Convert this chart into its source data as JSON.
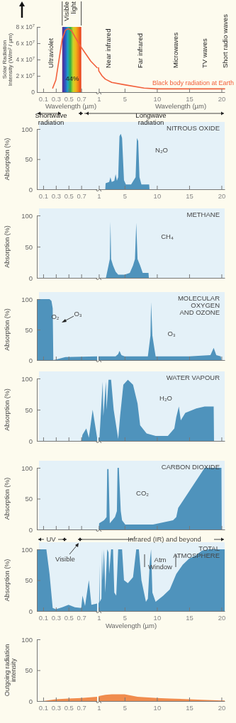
{
  "chart_data": [
    {
      "type": "line",
      "ylabel": "Solar Radiation Intensity (W/m² / µm)",
      "xlabel": "Wavelength (µm)",
      "xlim": [
        0,
        0.95
      ],
      "xticks": [
        0.1,
        0.3,
        0.5,
        0.7
      ],
      "ylim": [
        0,
        80000000
      ],
      "yticks": [
        0,
        {
          "value": 20000000,
          "label": "2 x 10$^{7}$"
        },
        {
          "value": 40000000,
          "label": "4 x 10$^{7}$"
        },
        {
          "value": 60000000,
          "label": "6 x 10$^{7}$"
        },
        {
          "value": 80000000,
          "label": "8 x 10$^{7}$"
        }
      ],
      "x": [
        0.25,
        0.3,
        0.35,
        0.4,
        0.45,
        0.5,
        0.55,
        0.6,
        0.7,
        0.85,
        0.95
      ],
      "series": [
        {
          "color": "#f2603c",
          "values": [
            5000000,
            15000000,
            40000000,
            65000000,
            76000000,
            78000000,
            75000000,
            68000000,
            55000000,
            38000000,
            30000000
          ]
        }
      ],
      "bands": [
        {
          "axis": "x",
          "from": 0.4,
          "to": 0.7,
          "label": "Visible light"
        }
      ],
      "annotations": [
        "Ultraviolet",
        "44%",
        "Shortwave radiation"
      ]
    },
    {
      "type": "line",
      "xlabel": "Wavelength (µm)",
      "xlim": [
        0.95,
        20.5
      ],
      "xticks": [
        1,
        5,
        10,
        15,
        20
      ],
      "ylim": [
        0,
        80000000
      ],
      "tick_labels": "x",
      "x": [
        0.95,
        1,
        1.5,
        2,
        3,
        5,
        8,
        10,
        15,
        20,
        20.5
      ],
      "series": [
        {
          "name": "Black body radiation at Earth",
          "color": "#f2603c",
          "values": [
            30000000,
            26000000,
            20000000,
            16000000,
            12000000,
            9000000,
            5000000,
            4000000,
            4000000,
            4000000,
            4000000
          ]
        }
      ],
      "annotations": [
        "Near infrared",
        "Far infrared",
        "Microwaves",
        "TV waves",
        "Short radio waves",
        "Longwave radiation"
      ]
    },
    {
      "type": "area",
      "ylabel": "Absorption (%)",
      "xlim": [
        0,
        0.95
      ],
      "xticks": [
        0.1,
        0.3,
        0.5,
        0.7
      ],
      "ylim": [
        0,
        100
      ],
      "yticks": [
        0,
        50,
        100
      ]
    },
    {
      "type": "area",
      "title": "NITROUS OXIDE",
      "xlim": [
        0.95,
        20.5
      ],
      "xticks": [
        1,
        5,
        10,
        15,
        20
      ],
      "ylim": [
        0,
        100
      ],
      "tick_labels": "x",
      "color": "#4f93bc",
      "x": [
        2.0,
        2.05,
        2.6,
        2.8,
        3.0,
        3.4,
        3.6,
        3.8,
        4.0,
        4.2,
        4.4,
        4.6,
        4.9,
        5.2,
        6.0,
        6.7,
        6.9,
        7.1,
        7.3,
        7.6,
        8.8,
        8.85
      ],
      "values": [
        0,
        10,
        12,
        20,
        12,
        14,
        25,
        14,
        20,
        88,
        92,
        85,
        15,
        8,
        8,
        20,
        85,
        80,
        20,
        8,
        8,
        0
      ],
      "annotations": [
        "N₂O"
      ]
    },
    {
      "type": "area",
      "ylabel": "Absorption (%)",
      "xlim": [
        0,
        0.95
      ],
      "xticks": [
        0.1,
        0.3,
        0.5,
        0.7
      ],
      "ylim": [
        0,
        100
      ],
      "yticks": [
        0,
        50,
        100
      ],
      "tick_labels": "y"
    },
    {
      "type": "area",
      "title": "METHANE",
      "xlim": [
        0.95,
        20.5
      ],
      "xticks": [
        1,
        5,
        10,
        15,
        20
      ],
      "ylim": [
        0,
        100
      ],
      "tick_labels": false,
      "color": "#4f93bc",
      "x": [
        2.1,
        2.2,
        2.5,
        2.7,
        2.8,
        2.9,
        3.2,
        3.6,
        4.0,
        4.9,
        5.0,
        5.8,
        6.3,
        6.6,
        6.8,
        7.0,
        7.4,
        7.8,
        8.7,
        8.75
      ],
      "values": [
        0,
        5,
        20,
        30,
        90,
        30,
        20,
        10,
        5,
        5,
        5,
        8,
        20,
        30,
        88,
        30,
        20,
        8,
        8,
        0
      ],
      "annotations": [
        "CH₄"
      ]
    },
    {
      "type": "area",
      "ylabel": "Absorption (%)",
      "xlim": [
        0,
        0.95
      ],
      "xticks": [
        0.1,
        0.3,
        0.5,
        0.7
      ],
      "ylim": [
        0,
        100
      ],
      "yticks": [
        0,
        50,
        100
      ],
      "tick_labels": "y",
      "color": "#4f93bc",
      "x": [
        0,
        0.2,
        0.23,
        0.25,
        0.26,
        0.3,
        0.45,
        0.95
      ],
      "values": [
        100,
        100,
        97,
        85,
        0,
        1,
        5,
        6
      ],
      "annotations": [
        "O₂",
        "O₃"
      ]
    },
    {
      "type": "area",
      "title": "MOLECULAR OXYGEN AND OZONE",
      "xlim": [
        0.95,
        20.5
      ],
      "xticks": [
        1,
        5,
        10,
        15,
        20
      ],
      "ylim": [
        0,
        100
      ],
      "tick_labels": false,
      "color": "#4f93bc",
      "x": [
        0.95,
        3.6,
        4.0,
        4.2,
        4.5,
        5,
        8.6,
        9.0,
        9.1,
        9.3,
        9.8,
        15,
        18.3,
        18.8,
        19.2,
        19.9,
        20
      ],
      "values": [
        6,
        6,
        10,
        15,
        8,
        6,
        6,
        40,
        95,
        40,
        6,
        6,
        8,
        20,
        8,
        6,
        0
      ],
      "annotations": [
        "O₃"
      ]
    },
    {
      "type": "area",
      "ylabel": "Absorption (%)",
      "xlim": [
        0,
        0.95
      ],
      "xticks": [
        0.1,
        0.3,
        0.5,
        0.7
      ],
      "ylim": [
        0,
        100
      ],
      "yticks": [
        0,
        50,
        100
      ],
      "tick_labels": "y",
      "color": "#4f93bc",
      "x": [
        0.7,
        0.72,
        0.78,
        0.82,
        0.88,
        0.95
      ],
      "values": [
        0,
        10,
        20,
        5,
        50,
        5
      ]
    },
    {
      "type": "area",
      "title": "WATER VAPOUR",
      "xlim": [
        0.95,
        20.5
      ],
      "xticks": [
        1,
        5,
        10,
        15,
        20
      ],
      "ylim": [
        0,
        100
      ],
      "tick_labels": false,
      "color": "#4f93bc",
      "x": [
        0.95,
        1.1,
        1.6,
        1.7,
        2.1,
        2.2,
        2.5,
        2.9,
        3.3,
        4.0,
        4.3,
        4.8,
        5.5,
        6.3,
        7.0,
        7.4,
        8.4,
        9.8,
        11.7,
        12.7,
        13.0,
        13.4,
        13.7,
        14.4,
        16.1,
        17.4,
        18.8,
        18.85
      ],
      "values": [
        5,
        5,
        95,
        40,
        95,
        50,
        98,
        98,
        50,
        3,
        40,
        90,
        98,
        90,
        60,
        25,
        12,
        8,
        8,
        20,
        38,
        55,
        33,
        45,
        52,
        55,
        55,
        0
      ],
      "annotations": [
        "H₂O"
      ]
    },
    {
      "type": "area",
      "ylabel": "Absorption (%)",
      "xlim": [
        0,
        0.95
      ],
      "xticks": [
        0.1,
        0.3,
        0.5,
        0.7
      ],
      "ylim": [
        0,
        100
      ],
      "yticks": [
        0,
        50,
        100
      ],
      "tick_labels": "y"
    },
    {
      "type": "area",
      "title": "CARBON DIOXIDE",
      "xlim": [
        0.95,
        20.5
      ],
      "xticks": [
        1,
        5,
        10,
        15,
        20
      ],
      "ylim": [
        0,
        100
      ],
      "tick_labels": false,
      "color": "#4f93bc",
      "x": [
        1.0,
        1.05,
        1.8,
        2.2,
        2.3,
        2.5,
        2.7,
        3.5,
        3.8,
        3.9,
        4.1,
        4.4,
        4.6,
        5.1,
        9.4,
        12.5,
        13.0,
        13.3,
        17.4,
        20,
        20.05
      ],
      "values": [
        0,
        10,
        15,
        20,
        98,
        98,
        10,
        20,
        30,
        100,
        100,
        30,
        15,
        8,
        8,
        15,
        20,
        35,
        100,
        100,
        0
      ],
      "annotations": [
        "CO₂"
      ]
    },
    {
      "type": "area",
      "ylabel": "Absorption (%)",
      "xlim": [
        0,
        0.95
      ],
      "xticks": [
        0.1,
        0.3,
        0.5,
        0.7
      ],
      "ylim": [
        0,
        100
      ],
      "yticks": [
        0,
        50,
        100
      ],
      "color": "#4f93bc",
      "x": [
        0,
        0.15,
        0.2,
        0.25,
        0.3,
        0.4,
        0.5,
        0.6,
        0.7,
        0.72,
        0.76,
        0.82,
        0.86,
        0.95
      ],
      "values": [
        100,
        100,
        60,
        5,
        3,
        6,
        10,
        6,
        5,
        25,
        8,
        50,
        10,
        12
      ],
      "annotations": [
        "UV",
        "Visible"
      ]
    },
    {
      "type": "area",
      "title": "TOTAL ATMOSPHERE",
      "xlabel": "Wavelength (µm)",
      "xlim": [
        0.95,
        20.5
      ],
      "xticks": [
        1,
        5,
        10,
        15,
        20
      ],
      "ylim": [
        0,
        100
      ],
      "tick_labels": "x",
      "color": "#4f93bc",
      "x": [
        0.95,
        1.05,
        1.1,
        1.15,
        1.4,
        1.5,
        1.6,
        1.8,
        2.0,
        2.3,
        2.5,
        2.6,
        2.9,
        3.2,
        3.4,
        3.7,
        4.0,
        4.6,
        4.9,
        5.5,
        6.3,
        6.8,
        7.2,
        7.6,
        8.3,
        8.6,
        8.9,
        9.1,
        9.3,
        9.8,
        11,
        12,
        13,
        14,
        15,
        16,
        17,
        18,
        20.5
      ],
      "values": [
        12,
        15,
        75,
        15,
        20,
        100,
        50,
        100,
        30,
        100,
        95,
        60,
        100,
        100,
        30,
        25,
        100,
        100,
        50,
        45,
        55,
        100,
        100,
        50,
        15,
        20,
        80,
        100,
        30,
        15,
        25,
        35,
        60,
        75,
        85,
        90,
        98,
        100,
        100
      ],
      "annotations": [
        "Infrared (IR) and beyond",
        "Atm Window"
      ]
    },
    {
      "type": "area",
      "ylabel": "Outgoing radiation intensity",
      "xlim": [
        0,
        0.95
      ],
      "xticks": [
        0.1,
        0.3,
        0.5,
        0.7
      ],
      "ylim": [
        0,
        100
      ],
      "yticks": [
        0,
        50,
        100
      ],
      "color": "#f08c4e",
      "x": [
        0.1,
        0.3,
        0.5,
        0.7,
        0.95
      ],
      "values": [
        0,
        3,
        4,
        5,
        7
      ]
    },
    {
      "type": "area",
      "xlim": [
        0.95,
        20.5
      ],
      "xticks": [
        1,
        5,
        10,
        15,
        20
      ],
      "ylim": [
        0,
        100
      ],
      "tick_labels": "x",
      "color": "#f08c4e",
      "x": [
        0.95,
        1,
        2,
        3,
        5,
        7,
        10,
        12,
        15,
        17,
        20,
        20.5
      ],
      "values": [
        7,
        8,
        10,
        11,
        11,
        7,
        5,
        4,
        3,
        2,
        1,
        1
      ]
    }
  ]
}
